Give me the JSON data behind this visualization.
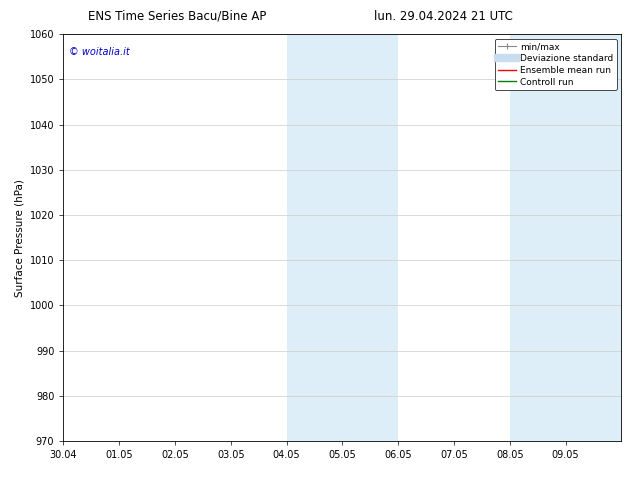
{
  "title_left": "ENS Time Series Bacu/Bine AP",
  "title_right": "lun. 29.04.2024 21 UTC",
  "ylabel": "Surface Pressure (hPa)",
  "ylim": [
    970,
    1060
  ],
  "yticks": [
    970,
    980,
    990,
    1000,
    1010,
    1020,
    1030,
    1040,
    1050,
    1060
  ],
  "xlim_start": 0,
  "xlim_end": 10,
  "xtick_labels": [
    "30.04",
    "01.05",
    "02.05",
    "03.05",
    "04.05",
    "05.05",
    "06.05",
    "07.05",
    "08.05",
    "09.05"
  ],
  "xtick_positions": [
    0,
    1,
    2,
    3,
    4,
    5,
    6,
    7,
    8,
    9
  ],
  "shaded_bands": [
    {
      "x_start": 4.0,
      "x_end": 4.5,
      "color": "#ddeef9"
    },
    {
      "x_start": 4.5,
      "x_end": 5.0,
      "color": "#ddeef9"
    },
    {
      "x_start": 5.0,
      "x_end": 5.5,
      "color": "#ddeef9"
    },
    {
      "x_start": 5.5,
      "x_end": 6.0,
      "color": "#ddeef9"
    },
    {
      "x_start": 8.0,
      "x_end": 8.5,
      "color": "#ddeef9"
    },
    {
      "x_start": 8.5,
      "x_end": 9.0,
      "color": "#ddeef9"
    },
    {
      "x_start": 9.0,
      "x_end": 9.5,
      "color": "#ddeef9"
    },
    {
      "x_start": 9.5,
      "x_end": 10.0,
      "color": "#ddeef9"
    }
  ],
  "watermark_text": "© woitalia.it",
  "watermark_color": "#0000cc",
  "bg_color": "#ffffff",
  "grid_color": "#cccccc",
  "title_fontsize": 8.5,
  "tick_fontsize": 7,
  "ylabel_fontsize": 7.5,
  "watermark_fontsize": 7,
  "legend_fontsize": 6.5
}
